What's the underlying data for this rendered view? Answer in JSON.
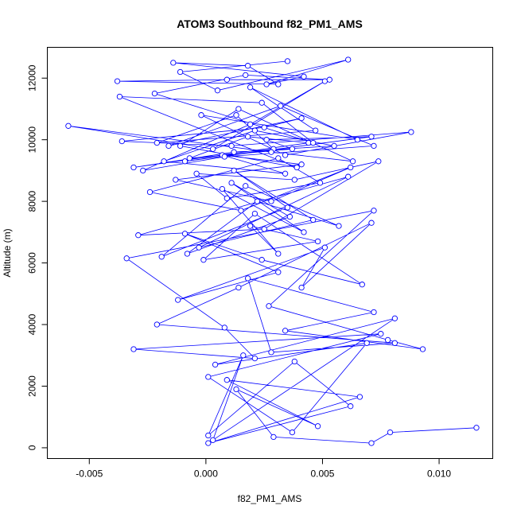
{
  "chart_data": {
    "type": "line",
    "title": "ATOM3 Southbound f82_PM1_AMS",
    "xlabel": "f82_PM1_AMS",
    "ylabel": "Altitude (m)",
    "xlim": [
      -0.0068,
      0.0123
    ],
    "ylim": [
      -350,
      13000
    ],
    "xticks": [
      -0.005,
      0.0,
      0.005,
      0.01
    ],
    "xtick_labels": [
      "-0.005",
      "0.000",
      "0.005",
      "0.010"
    ],
    "yticks": [
      0,
      2000,
      4000,
      6000,
      8000,
      10000,
      12000
    ],
    "ytick_labels": [
      "0",
      "2000",
      "4000",
      "6000",
      "8000",
      "10000",
      "12000"
    ],
    "grid": false,
    "legend": "none",
    "marker": "open-circle",
    "color": "#0000ff",
    "series": [
      {
        "x": [
          0.0116,
          0.0079,
          0.0071,
          0.0029,
          0.0013,
          0.0048,
          0.0009,
          0.0066,
          0.0001,
          0.0062,
          0.0038,
          0.0001,
          0.0016,
          0.0003,
          0.0081,
          0.0004,
          0.0069,
          0.0037,
          0.0001,
          0.0075,
          -0.0031,
          0.0021,
          0.0008,
          -0.0034,
          0.0072,
          0.0027,
          0.0078,
          0.0093,
          0.0034,
          0.0072,
          0.0018,
          0.0028,
          0.0081,
          -0.0021,
          0.0014,
          0.0071,
          0.0041,
          0.0051,
          -0.0012,
          0.0031,
          -0.0009,
          0.0024,
          0.0067,
          0.0021,
          -0.0001,
          0.0048,
          0.0019,
          0.0031,
          0.0007,
          0.0042,
          0.0011,
          0.0036,
          -0.0008,
          0.0022,
          0.0057,
          0.0017,
          -0.0019,
          0.0035,
          0.0012,
          0.0046,
          -0.0003,
          0.0061,
          -0.0029,
          0.0025,
          0.0074,
          0.0038,
          -0.0004,
          0.0009,
          0.0049,
          0.0031,
          -0.0024,
          0.0015,
          0.0062,
          0.0028,
          -0.0013,
          0.0041,
          0.0007,
          0.0034,
          -0.0018,
          0.0021,
          0.0055,
          0.0012,
          -0.0031,
          0.0044,
          0.0018,
          -0.0007,
          0.0037,
          0.0026,
          0.0071,
          -0.0009,
          0.0029,
          0.0013,
          -0.0021,
          0.0047,
          0.0019,
          0.0065,
          -0.0002,
          0.0034,
          0.0088,
          0.0011,
          -0.0036,
          0.0025,
          0.0041,
          -0.0016,
          0.0032,
          0.0072,
          0.0008,
          -0.0027,
          0.0019,
          0.0051,
          0.0003,
          -0.0059,
          0.0028,
          0.0063,
          0.0014,
          -0.0011,
          0.0039,
          -0.0037,
          0.0024,
          0.0046,
          -0.0022,
          0.0017,
          0.0053,
          0.0009,
          -0.0038,
          0.0031,
          0.0018,
          -0.0014,
          0.0042,
          0.0026,
          0.0061,
          0.0005,
          -0.0011,
          0.0035
        ],
        "y": [
          650,
          500,
          150,
          350,
          1900,
          700,
          2200,
          1650,
          150,
          1350,
          2800,
          400,
          3000,
          250,
          4200,
          2700,
          3400,
          500,
          2300,
          3700,
          3200,
          2900,
          3900,
          6150,
          7700,
          4600,
          3500,
          3200,
          3800,
          4400,
          5500,
          3100,
          3400,
          4000,
          5200,
          7300,
          5200,
          6500,
          4800,
          5700,
          6950,
          6100,
          5300,
          7600,
          6100,
          6700,
          7200,
          6300,
          8400,
          7000,
          8600,
          7500,
          6300,
          8000,
          7200,
          8500,
          6200,
          7800,
          9000,
          7400,
          6500,
          8800,
          6900,
          7100,
          9300,
          8700,
          8900,
          8100,
          8600,
          9400,
          8300,
          7700,
          9100,
          8000,
          8700,
          9200,
          9500,
          8900,
          9300,
          10300,
          9800,
          9600,
          9100,
          9900,
          10100,
          9400,
          9700,
          10000,
          10100,
          9300,
          9700,
          10800,
          9900,
          10300,
          11700,
          10000,
          10800,
          9500,
          10250,
          9800,
          9950,
          10400,
          10700,
          9800,
          11100,
          9800,
          9450,
          9000,
          10500,
          11900,
          9700,
          10450,
          9600,
          9300,
          11000,
          9800,
          9100,
          11400,
          11200,
          9900,
          11500,
          12100,
          11950,
          11950,
          11900,
          11800,
          12400,
          12500,
          12050,
          11800,
          12600,
          11600,
          12200,
          12550
        ]
      }
    ]
  }
}
